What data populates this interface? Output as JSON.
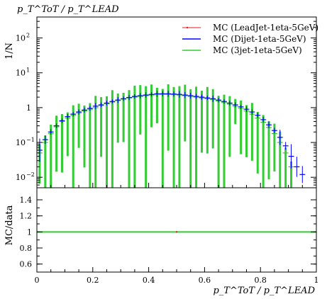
{
  "chart_data": {
    "type": "line",
    "title": "p_T^ToT / p_T^LEAD",
    "xlabel": "p_T^ToT / p_T^LEAD",
    "xlim": [
      0,
      1
    ],
    "xticks": [
      "0",
      "0.2",
      "0.4",
      "0.6",
      "0.8",
      "1"
    ],
    "main": {
      "ylabel": "1/N",
      "yscale": "log",
      "ylim": [
        0.005,
        400
      ],
      "yticks": [
        {
          "value": 0.01,
          "base": "10",
          "exp": "−2"
        },
        {
          "value": 0.1,
          "base": "10",
          "exp": "−1"
        },
        {
          "value": 1,
          "base": "1",
          "exp": ""
        },
        {
          "value": 10,
          "base": "10",
          "exp": "1"
        },
        {
          "value": 100,
          "base": "10",
          "exp": "2"
        }
      ]
    },
    "ratio": {
      "ylabel": "MC/data",
      "ylim": [
        0.5,
        1.55
      ],
      "yticks": [
        "0.6",
        "0.8",
        "1",
        "1.2",
        "1.4"
      ],
      "reference": 1
    },
    "legend_position": "top-right",
    "series": [
      {
        "name": "MC (LeadJet-1eta-5GeV)",
        "color": "#e41a1c",
        "style": "marker",
        "x": [],
        "y": [],
        "ratio": 1
      },
      {
        "name": "MC (Dijet-1eta-5GeV)",
        "color": "#0000ff",
        "style": "line",
        "x": [
          0.01,
          0.03,
          0.05,
          0.07,
          0.09,
          0.11,
          0.13,
          0.15,
          0.17,
          0.19,
          0.21,
          0.23,
          0.25,
          0.27,
          0.29,
          0.31,
          0.33,
          0.35,
          0.37,
          0.39,
          0.41,
          0.43,
          0.45,
          0.47,
          0.49,
          0.51,
          0.53,
          0.55,
          0.57,
          0.59,
          0.61,
          0.63,
          0.65,
          0.67,
          0.69,
          0.71,
          0.73,
          0.75,
          0.77,
          0.79,
          0.81,
          0.83,
          0.85,
          0.87,
          0.89,
          0.91,
          0.93,
          0.95
        ],
        "y": [
          0.06,
          0.12,
          0.2,
          0.3,
          0.42,
          0.55,
          0.65,
          0.75,
          0.85,
          0.95,
          1.1,
          1.2,
          1.35,
          1.5,
          1.65,
          1.8,
          1.95,
          2.1,
          2.2,
          2.3,
          2.4,
          2.5,
          2.5,
          2.5,
          2.45,
          2.4,
          2.3,
          2.2,
          2.1,
          2.0,
          1.9,
          1.8,
          1.65,
          1.5,
          1.35,
          1.2,
          1.05,
          0.9,
          0.75,
          0.6,
          0.45,
          0.32,
          0.22,
          0.14,
          0.08,
          0.04,
          0.02,
          0.012
        ],
        "ratio": 1
      },
      {
        "name": "MC (3jet-1eta-5GeV)",
        "color": "#33cc33",
        "style": "line",
        "x": [
          0.01,
          0.03,
          0.05,
          0.07,
          0.09,
          0.11,
          0.13,
          0.15,
          0.17,
          0.19,
          0.21,
          0.23,
          0.25,
          0.27,
          0.29,
          0.31,
          0.33,
          0.35,
          0.37,
          0.39,
          0.41,
          0.43,
          0.45,
          0.47,
          0.49,
          0.51,
          0.53,
          0.55,
          0.57,
          0.59,
          0.61,
          0.63,
          0.65,
          0.67,
          0.69,
          0.71,
          0.73,
          0.75,
          0.77,
          0.79,
          0.81,
          0.83,
          0.85,
          0.87,
          0.89,
          0.91
        ],
        "y": [
          0.05,
          0.1,
          0.18,
          0.28,
          0.4,
          0.5,
          0.6,
          0.7,
          0.8,
          0.9,
          1.0,
          1.15,
          1.3,
          1.45,
          1.6,
          1.75,
          1.9,
          2.0,
          2.1,
          2.2,
          2.3,
          2.35,
          2.4,
          2.4,
          2.35,
          2.3,
          2.2,
          2.1,
          2.0,
          1.9,
          1.8,
          1.7,
          1.55,
          1.4,
          1.25,
          1.1,
          0.95,
          0.8,
          0.65,
          0.5,
          0.38,
          0.27,
          0.18,
          0.1,
          0.05,
          0.02
        ],
        "ratio": 1
      }
    ]
  }
}
